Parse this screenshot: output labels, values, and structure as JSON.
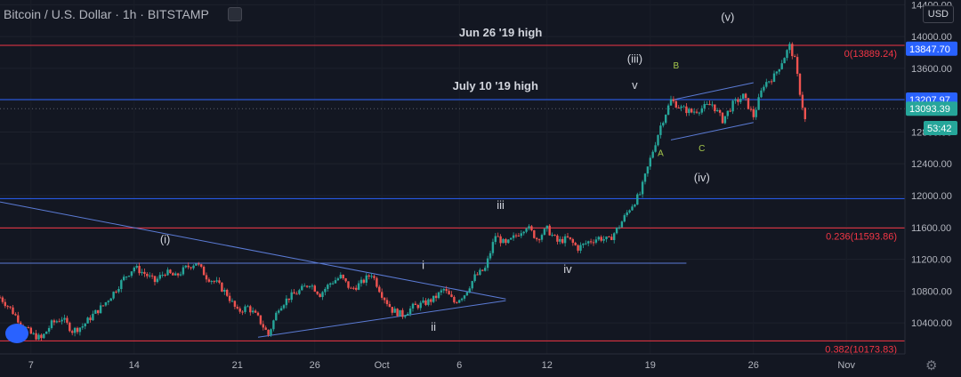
{
  "header": {
    "title": "Bitcoin / U.S. Dollar · 1h · BITSTAMP",
    "currency": "USD"
  },
  "icons": {
    "visibility": "eye-icon",
    "logo": "tradingview-logo-icon",
    "settings": "gear-icon"
  },
  "colors": {
    "bg": "#131722",
    "up": "#26a69a",
    "down": "#ef5350",
    "blue": "#2962ff",
    "red": "#f23645",
    "trend": "#5b7bd5"
  },
  "chart_data": {
    "type": "candlestick",
    "x_ticks": [
      "7",
      "14",
      "21",
      "26",
      "Oct",
      "6",
      "12",
      "19",
      "26",
      "Nov"
    ],
    "y_ticks": [
      "10400.00",
      "10800.00",
      "11200.00",
      "11600.00",
      "12000.00",
      "12400.00",
      "12800.00",
      "13200.00",
      "13600.00",
      "14000.00",
      "14400.00"
    ],
    "ylim": [
      10010,
      14460
    ],
    "price_path": [
      [
        0,
        10720
      ],
      [
        2,
        10580
      ],
      [
        4,
        10400
      ],
      [
        6,
        10260
      ],
      [
        8,
        10200
      ],
      [
        10,
        10390
      ],
      [
        12,
        10460
      ],
      [
        14,
        10300
      ],
      [
        16,
        10360
      ],
      [
        18,
        10500
      ],
      [
        20,
        10620
      ],
      [
        22,
        10780
      ],
      [
        24,
        10960
      ],
      [
        26,
        11100
      ],
      [
        28,
        11020
      ],
      [
        30,
        10920
      ],
      [
        32,
        11040
      ],
      [
        34,
        10980
      ],
      [
        36,
        11090
      ],
      [
        38,
        11160
      ],
      [
        40,
        10980
      ],
      [
        42,
        10900
      ],
      [
        44,
        10760
      ],
      [
        46,
        10540
      ],
      [
        48,
        10600
      ],
      [
        50,
        10460
      ],
      [
        52,
        10250
      ],
      [
        54,
        10600
      ],
      [
        56,
        10720
      ],
      [
        58,
        10800
      ],
      [
        60,
        10900
      ],
      [
        62,
        10760
      ],
      [
        64,
        10900
      ],
      [
        66,
        10980
      ],
      [
        68,
        10820
      ],
      [
        70,
        10900
      ],
      [
        72,
        11020
      ],
      [
        74,
        10760
      ],
      [
        76,
        10560
      ],
      [
        78,
        10500
      ],
      [
        80,
        10600
      ],
      [
        82,
        10640
      ],
      [
        84,
        10700
      ],
      [
        86,
        10820
      ],
      [
        88,
        10660
      ],
      [
        90,
        10760
      ],
      [
        92,
        10980
      ],
      [
        94,
        11080
      ],
      [
        96,
        11500
      ],
      [
        98,
        11380
      ],
      [
        100,
        11500
      ],
      [
        102,
        11620
      ],
      [
        104,
        11460
      ],
      [
        106,
        11580
      ],
      [
        108,
        11420
      ],
      [
        110,
        11460
      ],
      [
        112,
        11340
      ],
      [
        114,
        11420
      ],
      [
        116,
        11470
      ],
      [
        118,
        11440
      ],
      [
        120,
        11620
      ],
      [
        122,
        11840
      ],
      [
        124,
        12020
      ],
      [
        126,
        12460
      ],
      [
        128,
        12880
      ],
      [
        130,
        13200
      ],
      [
        132,
        13100
      ],
      [
        134,
        13050
      ],
      [
        136,
        13100
      ],
      [
        138,
        13150
      ],
      [
        140,
        12950
      ],
      [
        142,
        13150
      ],
      [
        144,
        13250
      ],
      [
        146,
        13000
      ],
      [
        148,
        13400
      ],
      [
        150,
        13500
      ],
      [
        152,
        13750
      ],
      [
        153,
        13880
      ],
      [
        154,
        13700
      ],
      [
        155,
        13300
      ],
      [
        156,
        12950
      ]
    ],
    "horizontal_levels": [
      {
        "price": 13889.24,
        "color": "red",
        "label": "0(13889.24)"
      },
      {
        "price": 13207.97,
        "color": "blue",
        "label": ""
      },
      {
        "price": 11963,
        "color": "blue",
        "label": ""
      },
      {
        "price": 11593.86,
        "color": "red",
        "label": "0.236(11593.86)"
      },
      {
        "price": 10173.83,
        "color": "red",
        "label": "0.382(10173.83)"
      }
    ],
    "support_line_price": 11150,
    "trendlines": [
      {
        "from": [
          0,
          11920
        ],
        "to": [
          98,
          10700
        ]
      },
      {
        "from": [
          50,
          10220
        ],
        "to": [
          98,
          10680
        ]
      },
      {
        "from": [
          130,
          13200
        ],
        "to": [
          146,
          13420
        ]
      },
      {
        "from": [
          130,
          12700
        ],
        "to": [
          146,
          12920
        ]
      }
    ],
    "price_labels": [
      {
        "text": "13847.70",
        "price": 13847.7,
        "color": "#2962ff"
      },
      {
        "text": "13207.97",
        "price": 13207.97,
        "color": "#2962ff"
      },
      {
        "text": "13093.39",
        "price": 13093.39,
        "color": "#26a69a"
      },
      {
        "text": "53:42",
        "price": 12850,
        "color": "#26a69a"
      }
    ],
    "annotations": [
      {
        "text": "Jun 26 '19 high",
        "x": 97,
        "price": 14000,
        "color": "#d1d4dc"
      },
      {
        "text": "July 10 '19 high",
        "x": 96,
        "price": 13330,
        "color": "#d1d4dc"
      },
      {
        "text": "(v)",
        "x": 141,
        "price": 14200,
        "color": "#d1d4dc"
      },
      {
        "text": "(iii)",
        "x": 123,
        "price": 13670,
        "color": "#d1d4dc"
      },
      {
        "text": "v",
        "x": 123,
        "price": 13340,
        "color": "#d1d4dc"
      },
      {
        "text": "B",
        "x": 131,
        "price": 13600,
        "color": "#a6c84c"
      },
      {
        "text": "A",
        "x": 128,
        "price": 12500,
        "color": "#a6c84c"
      },
      {
        "text": "C",
        "x": 136,
        "price": 12560,
        "color": "#a6c84c"
      },
      {
        "text": "(iv)",
        "x": 136,
        "price": 12180,
        "color": "#d1d4dc"
      },
      {
        "text": "iii",
        "x": 97,
        "price": 11830,
        "color": "#d1d4dc"
      },
      {
        "text": "(i)",
        "x": 32,
        "price": 11400,
        "color": "#d1d4dc"
      },
      {
        "text": "i",
        "x": 82,
        "price": 11080,
        "color": "#d1d4dc"
      },
      {
        "text": "iv",
        "x": 110,
        "price": 11030,
        "color": "#d1d4dc"
      },
      {
        "text": "ii",
        "x": 84,
        "price": 10300,
        "color": "#d1d4dc"
      }
    ]
  }
}
